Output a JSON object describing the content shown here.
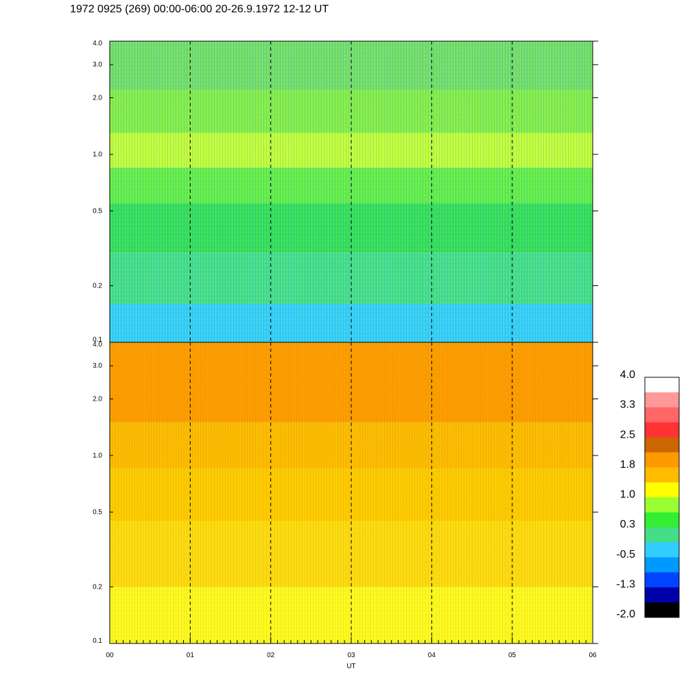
{
  "title": "1972 0925 (269) 00:00-06:00 20-26.9.1972  12-12 UT",
  "chart_data": {
    "type": "heatmap",
    "xlabel": "UT",
    "x_ticks": [
      "00",
      "01",
      "02",
      "03",
      "04",
      "05",
      "06"
    ],
    "xlim": [
      0,
      6
    ],
    "y_scale": "log",
    "ylim": [
      0.1,
      4.0
    ],
    "y_ticks": [
      {
        "value": 0.1,
        "label": "0.1"
      },
      {
        "value": 0.2,
        "label": "0.2"
      },
      {
        "value": 0.5,
        "label": "0.5"
      },
      {
        "value": 1.0,
        "label": "1.0"
      },
      {
        "value": 2.0,
        "label": "2.0"
      },
      {
        "value": 3.0,
        "label": "3.0"
      },
      {
        "value": 4.0,
        "label": "4.0"
      }
    ],
    "hour_markers": [
      1,
      2,
      3,
      4,
      5
    ],
    "panels": [
      {
        "name": "top",
        "bands": [
          {
            "from": 0.1,
            "to": 0.16,
            "color": "#33ccff"
          },
          {
            "from": 0.16,
            "to": 0.3,
            "color": "#44dd88"
          },
          {
            "from": 0.3,
            "to": 0.55,
            "color": "#33dd55"
          },
          {
            "from": 0.55,
            "to": 0.85,
            "color": "#66ee44"
          },
          {
            "from": 0.85,
            "to": 1.3,
            "color": "#ccff33"
          },
          {
            "from": 1.3,
            "to": 2.2,
            "color": "#88ee44"
          },
          {
            "from": 2.2,
            "to": 4.0,
            "color": "#77dd66"
          }
        ]
      },
      {
        "name": "bottom",
        "bands": [
          {
            "from": 0.1,
            "to": 0.2,
            "color": "#ffff22"
          },
          {
            "from": 0.2,
            "to": 0.45,
            "color": "#ffdd11"
          },
          {
            "from": 0.45,
            "to": 0.85,
            "color": "#ffcc00"
          },
          {
            "from": 0.85,
            "to": 1.5,
            "color": "#ffbb00"
          },
          {
            "from": 1.5,
            "to": 4.0,
            "color": "#ff9900"
          }
        ]
      }
    ],
    "colorbar": {
      "labels": [
        "4.0",
        "3.3",
        "2.5",
        "1.8",
        "1.0",
        "0.3",
        "-0.5",
        "-1.3",
        "-2.0"
      ],
      "colors": [
        "#ffffff",
        "#ff9999",
        "#ff6666",
        "#ff3333",
        "#cc6600",
        "#ff9900",
        "#ffbb00",
        "#ffff00",
        "#99ff33",
        "#33ee33",
        "#44dd88",
        "#33ccff",
        "#0099ff",
        "#0044ff",
        "#0000aa",
        "#000000"
      ]
    }
  }
}
